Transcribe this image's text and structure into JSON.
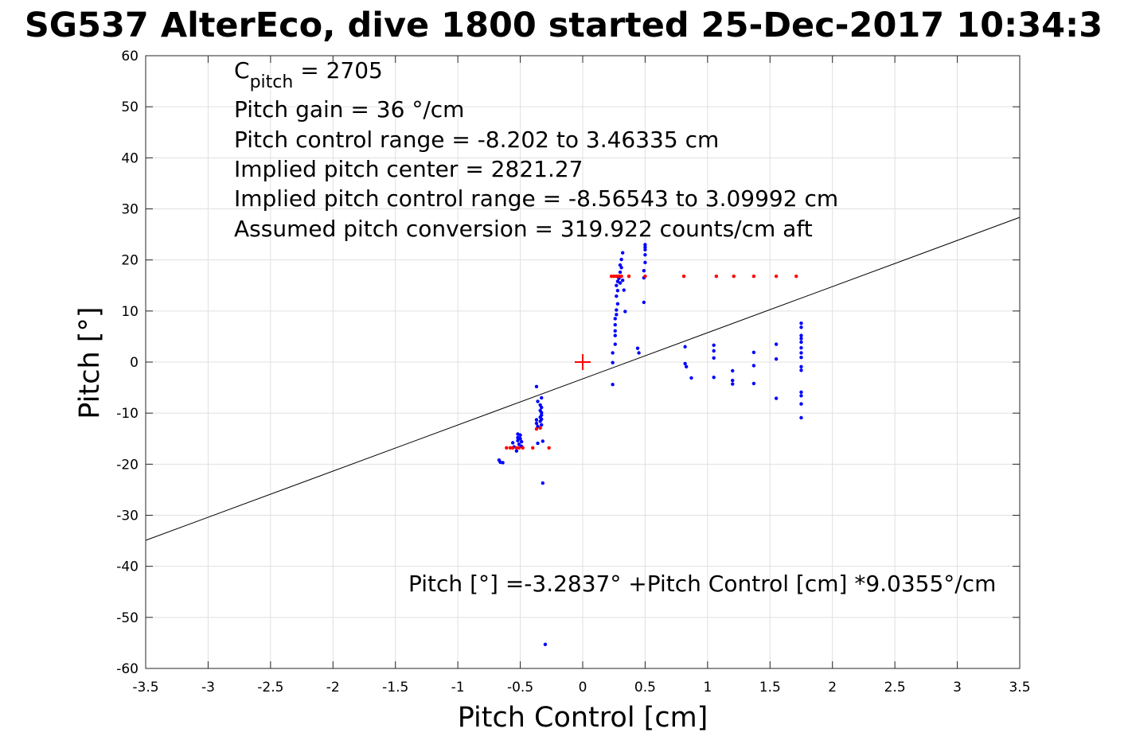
{
  "chart_data": {
    "type": "scatter",
    "title": "SG537 AlterEco, dive 1800 started 25-Dec-2017 10:34:3",
    "xlabel": "Pitch Control [cm]",
    "ylabel": "Pitch [°]",
    "xlim": [
      -3.5,
      3.5
    ],
    "ylim": [
      -60,
      60
    ],
    "xticks": [
      -3.5,
      -3,
      -2.5,
      -2,
      -1.5,
      -1,
      -0.5,
      0,
      0.5,
      1,
      1.5,
      2,
      2.5,
      3,
      3.5
    ],
    "xtick_labels": [
      "-3.5",
      "-3",
      "-2.5",
      "-2",
      "-1.5",
      "-1",
      "-0.5",
      "0",
      "0.5",
      "1",
      "1.5",
      "2",
      "2.5",
      "3",
      "3.5"
    ],
    "yticks": [
      -60,
      -50,
      -40,
      -30,
      -20,
      -10,
      0,
      10,
      20,
      30,
      40,
      50,
      60
    ],
    "ytick_labels": [
      "-60",
      "-50",
      "-40",
      "-30",
      "-20",
      "-10",
      "0",
      "10",
      "20",
      "30",
      "40",
      "50",
      "60"
    ],
    "grid": true,
    "annotations": {
      "cpitch_symbol": "C",
      "cpitch_subscript": "pitch",
      "cpitch_value": " = 2705",
      "lines": [
        "Pitch gain = 36 °/cm",
        "Pitch control range = -8.202 to 3.46335 cm",
        "Implied pitch center = 2821.27",
        "Implied pitch control range = -8.56543 to 3.09992 cm",
        "Assumed pitch conversion = 319.922 counts/cm aft"
      ],
      "fit_equation": "Pitch [°] =-3.2837° +Pitch Control [cm] *9.0355°/cm"
    },
    "fit_line": {
      "intercept": -3.2837,
      "slope": 9.0355,
      "color": "#000000"
    },
    "center_marker": {
      "x": 0,
      "y": 0,
      "color": "#ff0000"
    },
    "series": [
      {
        "color": "#0000ff",
        "points": [
          [
            -0.67,
            -19.2
          ],
          [
            -0.66,
            -19.6
          ],
          [
            -0.64,
            -19.7
          ],
          [
            -0.56,
            -15.8
          ],
          [
            -0.55,
            -16.6
          ],
          [
            -0.53,
            -17.4
          ],
          [
            -0.52,
            -14.1
          ],
          [
            -0.52,
            -14.8
          ],
          [
            -0.52,
            -15.4
          ],
          [
            -0.51,
            -16.1
          ],
          [
            -0.5,
            -14.3
          ],
          [
            -0.5,
            -15.0
          ],
          [
            -0.49,
            -15.6
          ],
          [
            -0.49,
            -16.5
          ],
          [
            -0.37,
            -4.8
          ],
          [
            -0.37,
            -11.3
          ],
          [
            -0.37,
            -12.0
          ],
          [
            -0.36,
            -7.7
          ],
          [
            -0.36,
            -12.6
          ],
          [
            -0.36,
            -15.9
          ],
          [
            -0.34,
            -8.4
          ],
          [
            -0.34,
            -9.5
          ],
          [
            -0.34,
            -10.8
          ],
          [
            -0.34,
            -11.6
          ],
          [
            -0.33,
            -7.0
          ],
          [
            -0.33,
            -8.9
          ],
          [
            -0.33,
            -9.9
          ],
          [
            -0.33,
            -10.4
          ],
          [
            -0.33,
            -11.2
          ],
          [
            -0.33,
            -12.3
          ],
          [
            -0.32,
            -15.5
          ],
          [
            -0.32,
            -23.7
          ],
          [
            -0.3,
            -55.3
          ],
          [
            0.24,
            1.8
          ],
          [
            0.24,
            -0.1
          ],
          [
            0.24,
            -4.4
          ],
          [
            0.26,
            5.2
          ],
          [
            0.26,
            3.5
          ],
          [
            0.26,
            6.1
          ],
          [
            0.26,
            7.3
          ],
          [
            0.26,
            8.5
          ],
          [
            0.27,
            9.3
          ],
          [
            0.27,
            10.2
          ],
          [
            0.27,
            12.9
          ],
          [
            0.27,
            15.0
          ],
          [
            0.28,
            11.4
          ],
          [
            0.28,
            14.0
          ],
          [
            0.28,
            15.8
          ],
          [
            0.29,
            16.4
          ],
          [
            0.3,
            17.6
          ],
          [
            0.3,
            19.0
          ],
          [
            0.3,
            15.5
          ],
          [
            0.31,
            18.5
          ],
          [
            0.31,
            20.1
          ],
          [
            0.32,
            21.4
          ],
          [
            0.32,
            16.0
          ],
          [
            0.33,
            14.1
          ],
          [
            0.34,
            9.9
          ],
          [
            0.44,
            2.7
          ],
          [
            0.45,
            1.8
          ],
          [
            0.49,
            11.7
          ],
          [
            0.49,
            16.5
          ],
          [
            0.49,
            17.9
          ],
          [
            0.5,
            19.5
          ],
          [
            0.5,
            21.0
          ],
          [
            0.5,
            22.0
          ],
          [
            0.5,
            22.5
          ],
          [
            0.5,
            23.0
          ],
          [
            0.82,
            3.0
          ],
          [
            0.82,
            -0.3
          ],
          [
            0.83,
            -0.9
          ],
          [
            0.87,
            -3.1
          ],
          [
            1.05,
            3.3
          ],
          [
            1.05,
            2.2
          ],
          [
            1.05,
            0.8
          ],
          [
            1.05,
            -3.0
          ],
          [
            1.2,
            -1.7
          ],
          [
            1.2,
            -3.6
          ],
          [
            1.2,
            -4.3
          ],
          [
            1.37,
            1.9
          ],
          [
            1.37,
            -0.7
          ],
          [
            1.37,
            -4.2
          ],
          [
            1.55,
            3.5
          ],
          [
            1.55,
            0.6
          ],
          [
            1.55,
            -7.1
          ],
          [
            1.75,
            7.6
          ],
          [
            1.75,
            6.8
          ],
          [
            1.75,
            5.2
          ],
          [
            1.75,
            4.6
          ],
          [
            1.75,
            3.9
          ],
          [
            1.75,
            2.8
          ],
          [
            1.75,
            1.8
          ],
          [
            1.75,
            0.9
          ],
          [
            1.75,
            -0.9
          ],
          [
            1.75,
            -1.6
          ],
          [
            1.75,
            -5.9
          ],
          [
            1.75,
            -6.6
          ],
          [
            1.75,
            -8.2
          ],
          [
            1.75,
            -10.9
          ]
        ]
      },
      {
        "color": "#ff0000",
        "points": [
          [
            -0.61,
            -16.8
          ],
          [
            -0.58,
            -16.8
          ],
          [
            -0.56,
            -16.8
          ],
          [
            -0.53,
            -16.8
          ],
          [
            -0.51,
            -16.8
          ],
          [
            -0.48,
            -16.8
          ],
          [
            -0.4,
            -16.8
          ],
          [
            -0.37,
            -13.1
          ],
          [
            -0.34,
            -12.9
          ],
          [
            -0.27,
            -16.8
          ],
          [
            0.23,
            16.8
          ],
          [
            0.25,
            16.8
          ],
          [
            0.27,
            16.8
          ],
          [
            0.29,
            16.8
          ],
          [
            0.31,
            16.8
          ],
          [
            0.37,
            16.8
          ],
          [
            0.5,
            16.8
          ],
          [
            0.81,
            16.8
          ],
          [
            1.07,
            16.8
          ],
          [
            1.21,
            16.8
          ],
          [
            1.37,
            16.8
          ],
          [
            1.55,
            16.8
          ],
          [
            1.71,
            16.8
          ]
        ]
      }
    ]
  }
}
